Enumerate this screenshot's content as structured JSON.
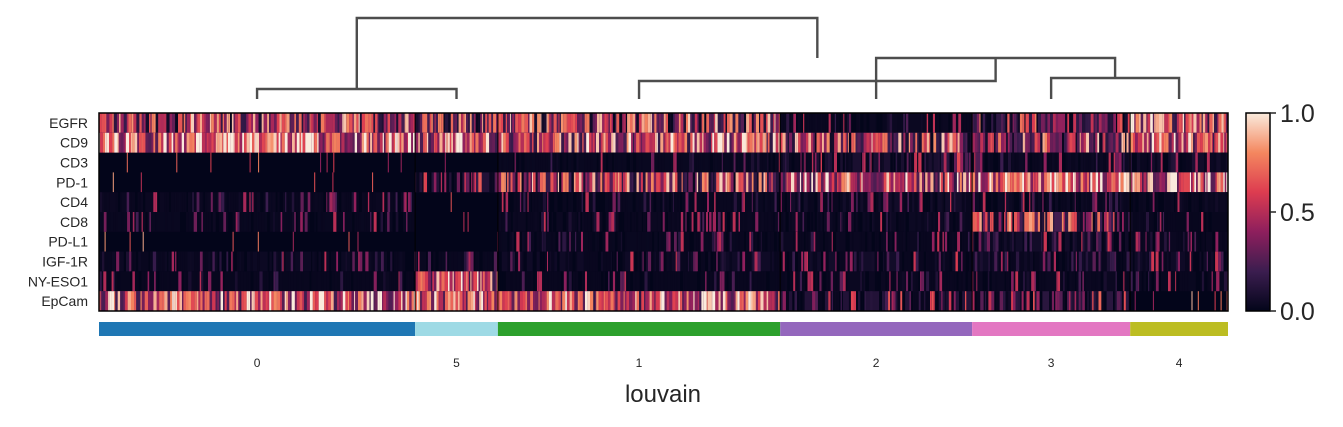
{
  "chart_data": {
    "type": "heatmap",
    "title": "",
    "xlabel": "louvain",
    "genes": [
      "EGFR",
      "CD9",
      "CD3",
      "PD-1",
      "CD4",
      "CD8",
      "PD-L1",
      "IGF-1R",
      "NY-ESO1",
      "EpCam"
    ],
    "cluster_order": [
      "0",
      "5",
      "1",
      "2",
      "3",
      "4"
    ],
    "cluster_cells": [
      840,
      220,
      750,
      510,
      420,
      260
    ],
    "cluster_colors": [
      "#1f77b4",
      "#9edae5",
      "#2ca02c",
      "#9467bd",
      "#e377c2",
      "#bcbd22"
    ],
    "mean_expression": {
      "0": [
        0.45,
        0.65,
        0.02,
        0.02,
        0.05,
        0.04,
        0.02,
        0.06,
        0.03,
        0.6
      ],
      "5": [
        0.4,
        0.55,
        0.02,
        0.2,
        0.02,
        0.02,
        0.02,
        0.04,
        0.55,
        0.6
      ],
      "1": [
        0.45,
        0.55,
        0.04,
        0.45,
        0.04,
        0.05,
        0.04,
        0.08,
        0.03,
        0.55
      ],
      "2": [
        0.05,
        0.45,
        0.15,
        0.55,
        0.1,
        0.06,
        0.05,
        0.1,
        0.05,
        0.2
      ],
      "3": [
        0.3,
        0.45,
        0.06,
        0.65,
        0.06,
        0.4,
        0.1,
        0.08,
        0.05,
        0.25
      ],
      "4": [
        0.55,
        0.55,
        0.1,
        0.6,
        0.05,
        0.03,
        0.05,
        0.08,
        0.04,
        0.02
      ]
    },
    "colorbar": {
      "colormap": "rocket",
      "range": [
        0.0,
        1.0
      ],
      "ticks": [
        "1.0",
        "0.5",
        "0.0"
      ]
    },
    "dendrogram": "clusters 0 and 5 merge; 1 merges with (2, (3, 4)); two groups merge at root",
    "grid": false
  }
}
